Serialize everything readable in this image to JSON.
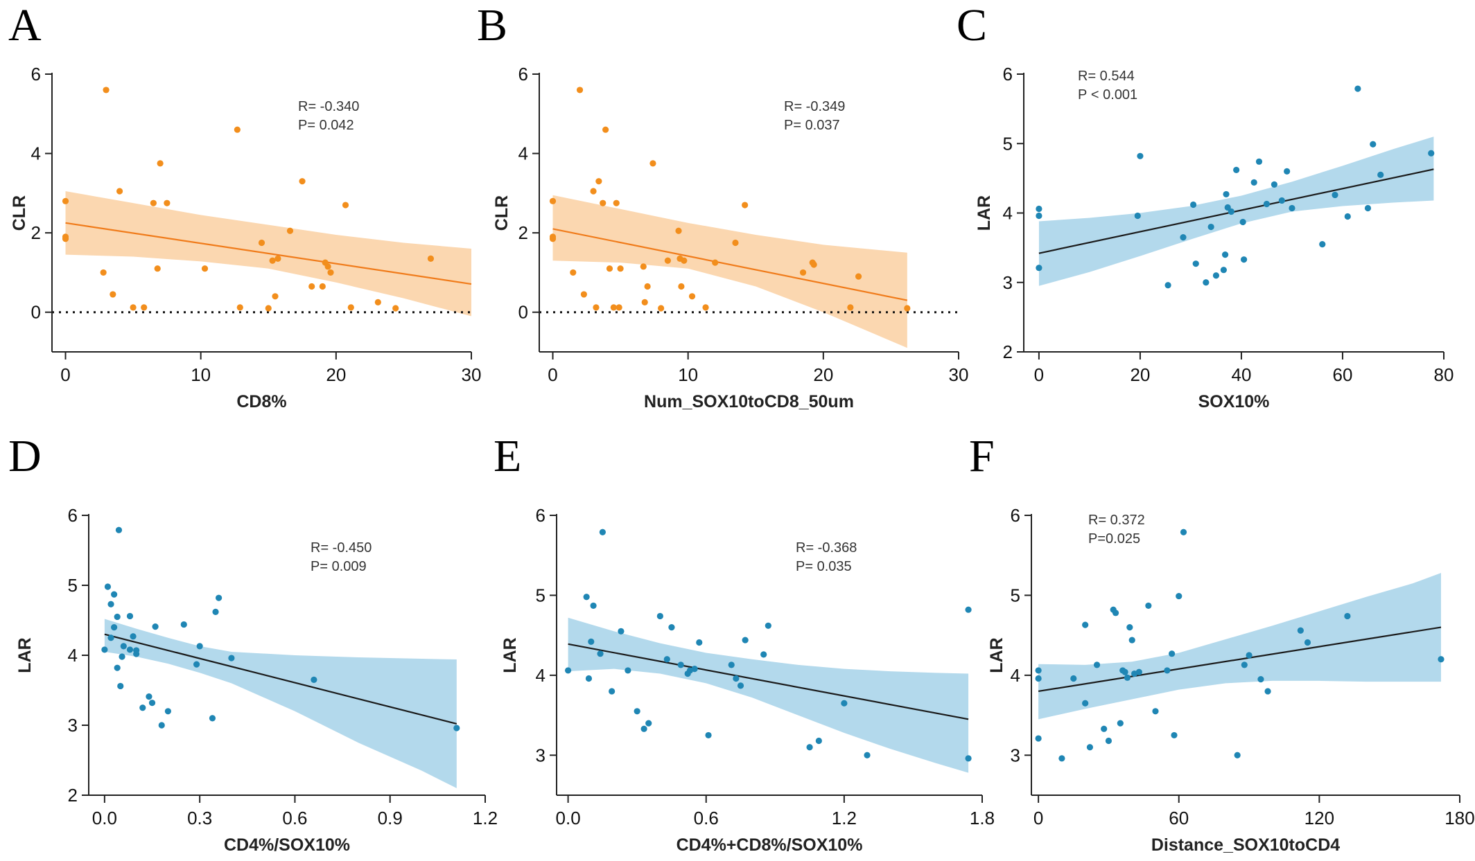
{
  "colors": {
    "orange": "#f28e1c",
    "orange_band": "#fbd7b0",
    "blue": "#1f86b4",
    "blue_band": "#b3d9ec",
    "fit_blue": "#1a1a1a",
    "fit_orange": "#f07b1a"
  },
  "chart_data": [
    {
      "letter": "A",
      "type": "scatter",
      "theme": "orange",
      "xlabel": "CD8%",
      "ylabel": "CLR",
      "xlim": [
        -1,
        30
      ],
      "ylim": [
        -1,
        6
      ],
      "xticks": [
        0,
        10,
        20,
        30
      ],
      "yticks": [
        0,
        2,
        4,
        6
      ],
      "stat_lines": [
        "R= -0.340",
        "P=  0.042"
      ],
      "zero_line": true,
      "fit": {
        "x": [
          0,
          30
        ],
        "y": [
          2.25,
          0.71
        ]
      },
      "band": {
        "x": [
          0,
          5,
          10,
          15,
          20,
          25,
          30
        ],
        "upper": [
          3.05,
          2.75,
          2.45,
          2.2,
          1.95,
          1.75,
          1.6
        ],
        "lower": [
          1.45,
          1.4,
          1.28,
          1.1,
          0.75,
          0.35,
          -0.1
        ]
      },
      "points": {
        "x": [
          0,
          0,
          0,
          2.8,
          3,
          3.5,
          4,
          5,
          5.8,
          6.5,
          6.8,
          7,
          7.5,
          10.3,
          12.7,
          12.9,
          14.5,
          15,
          15.3,
          15.5,
          15.7,
          16.6,
          17.5,
          18.2,
          19,
          19.2,
          19.4,
          19.6,
          20.7,
          21.1,
          23.1,
          24.4,
          27
        ],
        "y": [
          2.8,
          1.9,
          1.85,
          1.0,
          5.6,
          0.45,
          3.05,
          0.12,
          0.12,
          2.75,
          1.1,
          3.75,
          2.75,
          1.1,
          4.6,
          0.12,
          1.75,
          0.1,
          1.3,
          0.4,
          1.35,
          2.05,
          3.3,
          0.65,
          0.65,
          1.25,
          1.15,
          1.0,
          2.7,
          0.12,
          0.25,
          0.1,
          1.35
        ]
      }
    },
    {
      "letter": "B",
      "type": "scatter",
      "theme": "orange",
      "xlabel": "Num_SOX10toCD8_50um",
      "ylabel": "CLR",
      "xlim": [
        -1,
        30
      ],
      "ylim": [
        -1,
        6
      ],
      "xticks": [
        0,
        10,
        20,
        30
      ],
      "yticks": [
        0,
        2,
        4,
        6
      ],
      "stat_lines": [
        "R= -0.349",
        "P= 0.037"
      ],
      "zero_line": true,
      "fit": {
        "x": [
          0,
          26.2
        ],
        "y": [
          2.1,
          0.3
        ]
      },
      "band": {
        "x": [
          0,
          5,
          10,
          15,
          20,
          26.2
        ],
        "upper": [
          2.95,
          2.6,
          2.25,
          1.95,
          1.7,
          1.5
        ],
        "lower": [
          1.3,
          1.25,
          1.1,
          0.65,
          0.0,
          -0.9
        ]
      },
      "points": {
        "x": [
          0,
          0,
          0,
          1.5,
          2,
          2.3,
          3,
          3.2,
          3.4,
          3.7,
          3.9,
          4.2,
          4.5,
          4.7,
          4.9,
          5,
          6.7,
          6.8,
          7,
          7.4,
          8,
          8.5,
          9.3,
          9.4,
          9.5,
          9.7,
          10.3,
          11.3,
          12,
          13.5,
          14.2,
          18.5,
          19.2,
          19.3,
          22,
          22.6,
          26.2
        ],
        "y": [
          2.8,
          1.9,
          1.85,
          1.0,
          5.6,
          0.45,
          3.05,
          0.12,
          3.3,
          2.75,
          4.6,
          1.1,
          0.12,
          2.75,
          0.12,
          1.1,
          1.15,
          0.25,
          0.65,
          3.75,
          0.1,
          1.3,
          2.05,
          1.35,
          0.65,
          1.3,
          0.4,
          0.12,
          1.25,
          1.75,
          2.7,
          1.0,
          1.25,
          1.2,
          0.12,
          0.9,
          0.1
        ]
      }
    },
    {
      "letter": "C",
      "type": "scatter",
      "theme": "blue",
      "xlabel": "SOX10%",
      "ylabel": "LAR",
      "xlim": [
        -3,
        80
      ],
      "ylim": [
        2,
        6
      ],
      "xticks": [
        0,
        20,
        40,
        60,
        80
      ],
      "yticks": [
        2,
        3,
        4,
        5,
        6
      ],
      "stat_lines": [
        "R= 0.544",
        "P < 0.001"
      ],
      "zero_line": false,
      "fit": {
        "x": [
          0,
          78
        ],
        "y": [
          3.42,
          4.63
        ]
      },
      "band": {
        "x": [
          0,
          10,
          20,
          30,
          40,
          50,
          60,
          70,
          78
        ],
        "upper": [
          3.88,
          3.93,
          4.0,
          4.1,
          4.25,
          4.45,
          4.68,
          4.92,
          5.1
        ],
        "lower": [
          2.95,
          3.15,
          3.38,
          3.62,
          3.85,
          4.02,
          4.1,
          4.15,
          4.18
        ]
      },
      "points": {
        "x": [
          0,
          0,
          0,
          19.5,
          20,
          25.5,
          28.5,
          30.5,
          31,
          33,
          34,
          35,
          36.5,
          36.8,
          37,
          37.3,
          38,
          39,
          40.3,
          40.5,
          42.5,
          43.5,
          45,
          46.5,
          48,
          49,
          50,
          56,
          58.5,
          61,
          63,
          65,
          66,
          67.5,
          77.5
        ],
        "y": [
          4.06,
          3.96,
          3.21,
          3.96,
          4.82,
          2.96,
          3.65,
          4.12,
          3.27,
          3.0,
          3.8,
          3.1,
          3.18,
          3.4,
          4.27,
          4.08,
          4.02,
          4.62,
          3.87,
          3.33,
          4.44,
          4.74,
          4.13,
          4.41,
          4.18,
          4.6,
          4.07,
          3.55,
          4.26,
          3.95,
          5.79,
          4.07,
          4.99,
          4.55,
          4.86
        ]
      }
    },
    {
      "letter": "D",
      "type": "scatter",
      "theme": "blue",
      "xlabel": "CD4%/SOX10%",
      "ylabel": "LAR",
      "xlim": [
        -0.05,
        1.2
      ],
      "ylim": [
        2,
        6
      ],
      "xticks": [
        0,
        0.3,
        0.6,
        0.9,
        1.2
      ],
      "xtick_labels": [
        "0.0",
        "0.3",
        "0.6",
        "0.9",
        "1.2"
      ],
      "yticks": [
        2,
        3,
        4,
        5,
        6
      ],
      "stat_lines": [
        "R= -0.450",
        "P=  0.009"
      ],
      "zero_line": false,
      "fit": {
        "x": [
          0,
          1.11
        ],
        "y": [
          4.3,
          3.02
        ]
      },
      "band": {
        "x": [
          0,
          0.1,
          0.2,
          0.3,
          0.4,
          0.6,
          0.8,
          1.0,
          1.11
        ],
        "upper": [
          4.52,
          4.38,
          4.25,
          4.13,
          4.05,
          4.0,
          3.97,
          3.95,
          3.94
        ],
        "lower": [
          4.05,
          3.98,
          3.88,
          3.75,
          3.6,
          3.2,
          2.75,
          2.35,
          2.1
        ]
      },
      "points": {
        "x": [
          0,
          0.01,
          0.02,
          0.02,
          0.03,
          0.03,
          0.04,
          0.04,
          0.045,
          0.05,
          0.055,
          0.06,
          0.08,
          0.08,
          0.09,
          0.1,
          0.1,
          0.12,
          0.14,
          0.15,
          0.16,
          0.18,
          0.2,
          0.25,
          0.29,
          0.3,
          0.34,
          0.35,
          0.36,
          0.4,
          0.66,
          1.11
        ],
        "y": [
          4.08,
          4.98,
          4.73,
          4.25,
          4.87,
          4.4,
          4.55,
          3.82,
          5.79,
          3.56,
          3.98,
          4.13,
          4.08,
          4.56,
          4.27,
          4.02,
          4.07,
          3.25,
          3.41,
          3.32,
          4.41,
          3.0,
          3.2,
          4.44,
          3.87,
          4.13,
          3.1,
          4.62,
          4.82,
          3.96,
          3.65,
          2.96
        ]
      }
    },
    {
      "letter": "E",
      "type": "scatter",
      "theme": "blue",
      "xlabel": "CD4%+CD8%/SOX10%",
      "ylabel": "LAR",
      "xlim": [
        -0.05,
        1.8
      ],
      "ylim": [
        2.5,
        6
      ],
      "xticks": [
        0,
        0.6,
        1.2,
        1.8
      ],
      "xtick_labels": [
        "0.0",
        "0.6",
        "1.2",
        "1.8"
      ],
      "yticks": [
        3,
        4,
        5,
        6
      ],
      "stat_lines": [
        "R= -0.368",
        "P=  0.035"
      ],
      "zero_line": false,
      "fit": {
        "x": [
          0,
          1.74
        ],
        "y": [
          4.39,
          3.45
        ]
      },
      "band": {
        "x": [
          0,
          0.2,
          0.4,
          0.6,
          0.8,
          1.0,
          1.2,
          1.4,
          1.6,
          1.74
        ],
        "upper": [
          4.72,
          4.55,
          4.4,
          4.28,
          4.2,
          4.13,
          4.08,
          4.05,
          4.03,
          4.02
        ],
        "lower": [
          4.05,
          4.08,
          4.02,
          3.9,
          3.72,
          3.5,
          3.28,
          3.08,
          2.9,
          2.78
        ]
      },
      "points": {
        "x": [
          0,
          0.08,
          0.09,
          0.1,
          0.11,
          0.14,
          0.15,
          0.19,
          0.23,
          0.26,
          0.3,
          0.33,
          0.35,
          0.4,
          0.43,
          0.45,
          0.49,
          0.52,
          0.53,
          0.55,
          0.57,
          0.61,
          0.71,
          0.73,
          0.75,
          0.77,
          0.85,
          0.87,
          1.05,
          1.09,
          1.2,
          1.3,
          1.74,
          1.74
        ],
        "y": [
          4.06,
          4.98,
          3.96,
          4.42,
          4.87,
          4.27,
          5.79,
          3.8,
          4.55,
          4.06,
          3.55,
          3.33,
          3.4,
          4.74,
          4.2,
          4.6,
          4.13,
          4.02,
          4.06,
          4.08,
          4.41,
          3.25,
          4.13,
          3.96,
          3.87,
          4.44,
          4.26,
          4.62,
          3.1,
          3.18,
          3.65,
          3.0,
          2.96,
          4.82
        ]
      }
    },
    {
      "letter": "F",
      "type": "scatter",
      "theme": "blue",
      "xlabel": "Distance_SOX10toCD4",
      "ylabel": "LAR",
      "xlim": [
        -3,
        180
      ],
      "ylim": [
        2.5,
        6
      ],
      "xticks": [
        0,
        60,
        120,
        180
      ],
      "yticks": [
        3,
        4,
        5,
        6
      ],
      "stat_lines": [
        "R= 0.372",
        "P=0.025"
      ],
      "zero_line": false,
      "fit": {
        "x": [
          0,
          172
        ],
        "y": [
          3.8,
          4.6
        ]
      },
      "band": {
        "x": [
          0,
          20,
          40,
          60,
          80,
          100,
          120,
          140,
          160,
          172
        ],
        "upper": [
          4.14,
          4.13,
          4.17,
          4.28,
          4.45,
          4.62,
          4.8,
          4.98,
          5.15,
          5.28
        ],
        "lower": [
          3.45,
          3.58,
          3.7,
          3.82,
          3.9,
          3.93,
          3.93,
          3.92,
          3.92,
          3.92
        ]
      },
      "points": {
        "x": [
          0,
          0,
          0,
          10,
          15,
          20,
          20,
          22,
          25,
          28,
          30,
          32,
          33,
          35,
          36,
          37,
          38,
          39,
          40,
          41,
          43,
          47,
          50,
          55,
          57,
          58,
          60,
          62,
          85,
          88,
          90,
          95,
          98,
          112,
          115,
          132,
          172
        ],
        "y": [
          4.06,
          3.96,
          3.21,
          2.96,
          3.96,
          4.63,
          3.65,
          3.1,
          4.13,
          3.33,
          3.18,
          4.82,
          4.78,
          3.4,
          4.06,
          4.04,
          3.97,
          4.6,
          4.44,
          4.02,
          4.04,
          4.87,
          3.55,
          4.06,
          4.27,
          3.25,
          4.99,
          5.79,
          3.0,
          4.13,
          4.25,
          3.95,
          3.8,
          4.56,
          4.41,
          4.74,
          4.2
        ]
      }
    }
  ]
}
